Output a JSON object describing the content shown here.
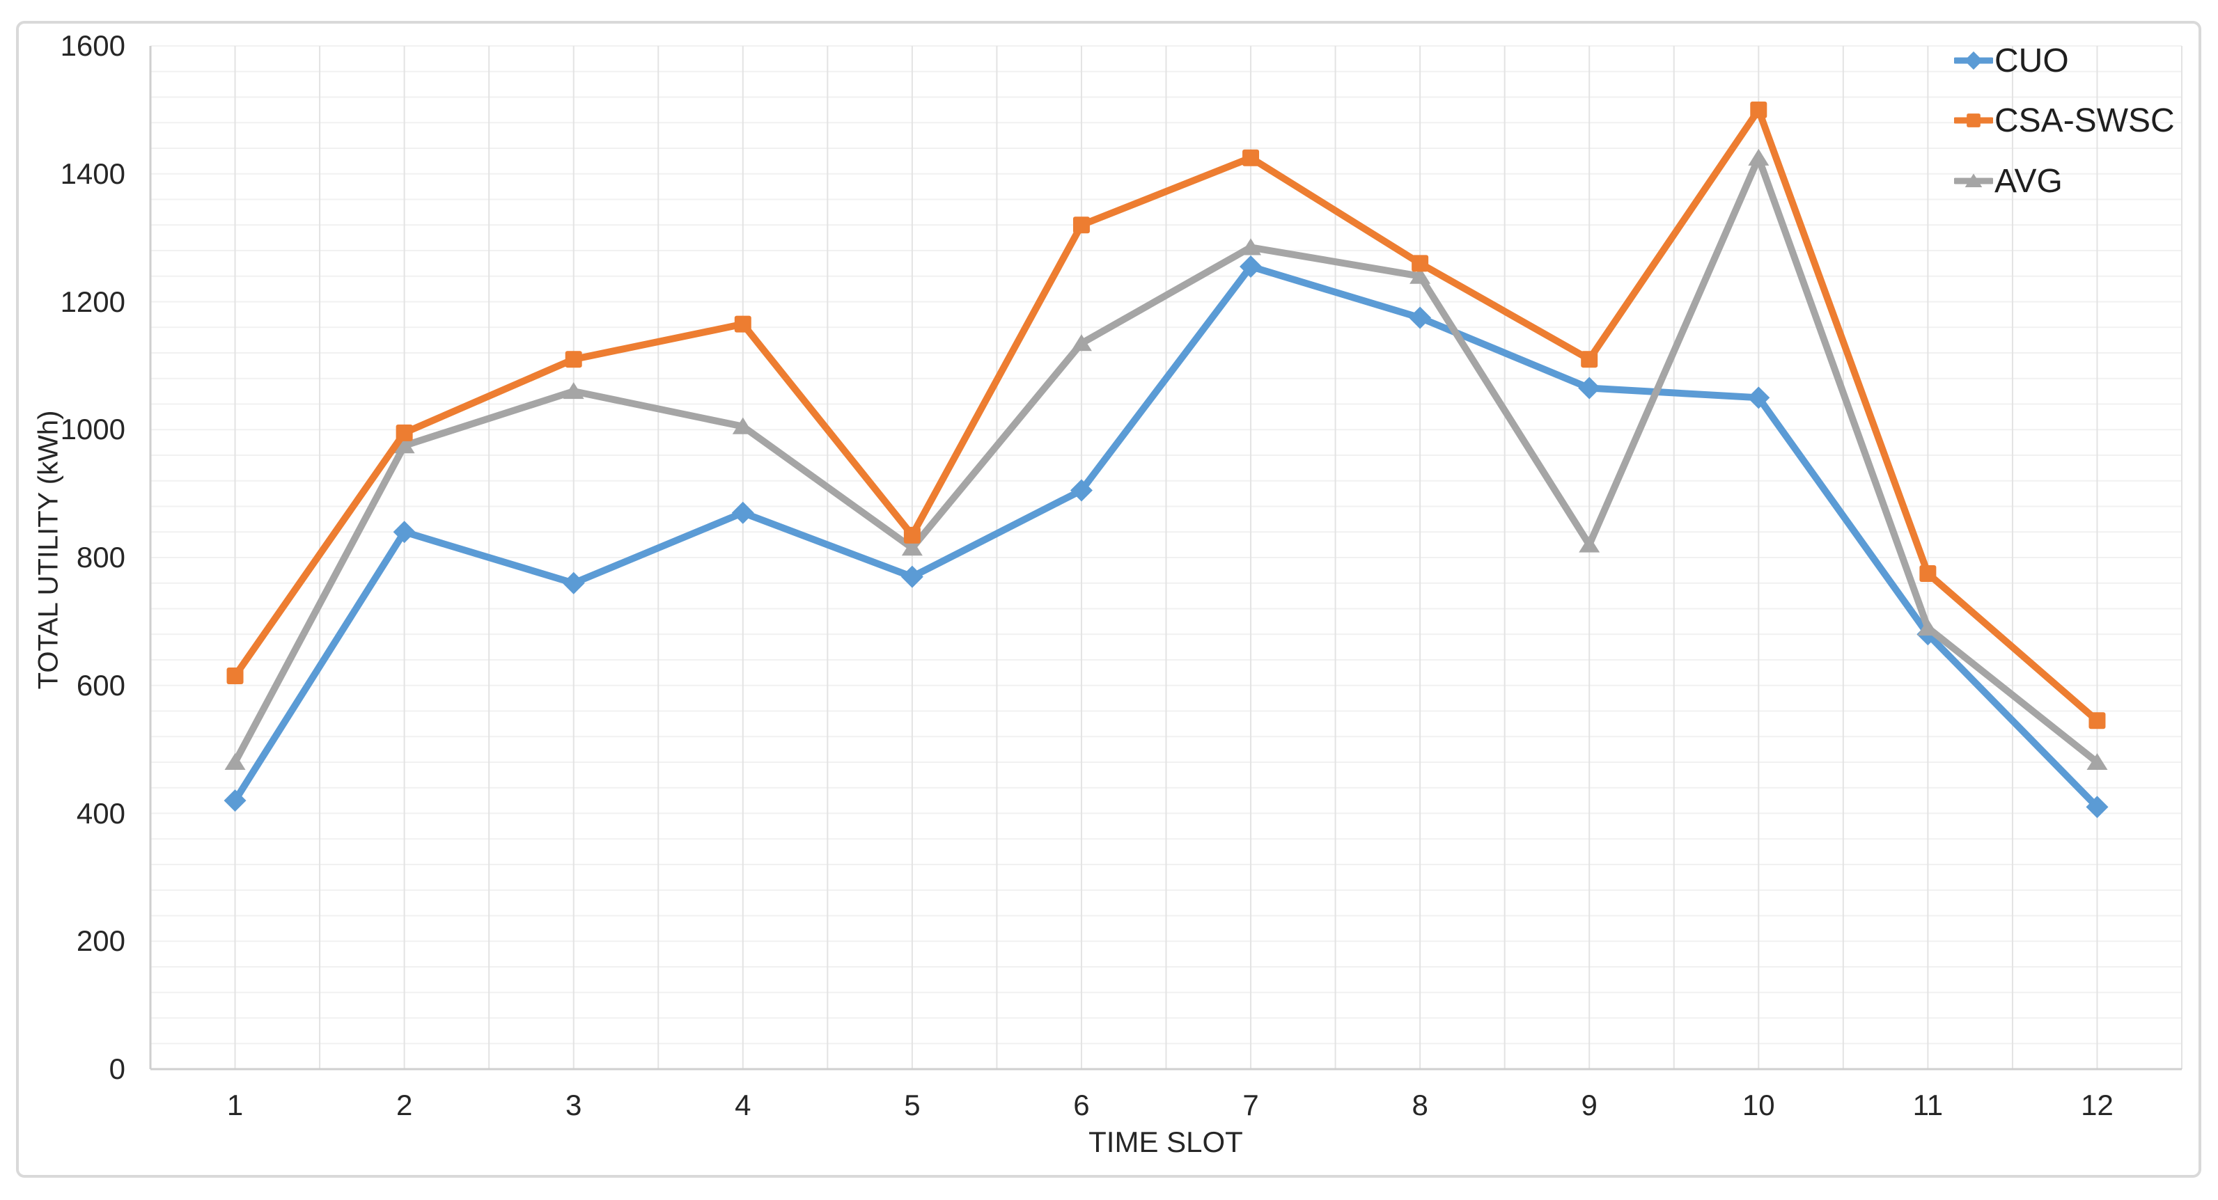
{
  "chart_data": {
    "type": "line",
    "title": "",
    "xlabel": "TIME SLOT",
    "ylabel": "TOTAL UTILITY (kWh)",
    "categories": [
      "1",
      "2",
      "3",
      "4",
      "5",
      "6",
      "7",
      "8",
      "9",
      "10",
      "11",
      "12"
    ],
    "series": [
      {
        "name": "CUO",
        "color": "#5B9BD5",
        "marker": "diamond",
        "values": [
          420,
          840,
          760,
          870,
          770,
          905,
          1255,
          1175,
          1065,
          1050,
          680,
          410
        ]
      },
      {
        "name": "CSA-SWSC",
        "color": "#ED7D31",
        "marker": "square",
        "values": [
          615,
          995,
          1110,
          1165,
          835,
          1320,
          1425,
          1260,
          1110,
          1500,
          775,
          545
        ]
      },
      {
        "name": "AVG",
        "color": "#A5A5A5",
        "marker": "triangle",
        "values": [
          480,
          975,
          1060,
          1005,
          815,
          1135,
          1285,
          1240,
          820,
          1425,
          690,
          480
        ]
      }
    ],
    "ylim": [
      0,
      1600
    ],
    "y_major_unit": 200,
    "y_minor_unit": 40,
    "y_tick_labels": [
      "0",
      "200",
      "400",
      "600",
      "800",
      "1000",
      "1200",
      "1400",
      "1600"
    ],
    "grid": true,
    "legend_position": "top-right",
    "colors": {
      "gridline_minor": "#F1F1F1",
      "gridline_vertical": "#E3E3E3",
      "axis_line": "#CFCFCF",
      "frame_border": "#D9D9D9",
      "tick_text": "#262626"
    }
  }
}
